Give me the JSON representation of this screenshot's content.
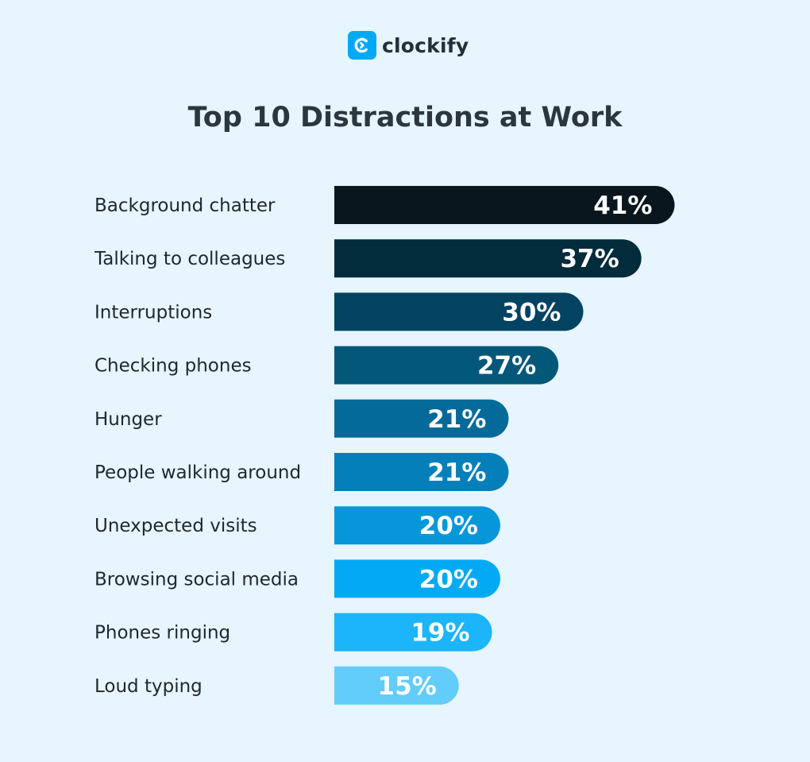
{
  "brand": {
    "name": "clockify",
    "icon": "clockify-logo-icon",
    "color": "#03a9f4"
  },
  "chart_data": {
    "type": "bar",
    "orientation": "horizontal",
    "title": "Top 10 Distractions at Work",
    "categories": [
      "Background chatter",
      "Talking to colleagues",
      "Interruptions",
      "Checking phones",
      "Hunger",
      "People walking around",
      "Unexpected visits",
      "Browsing social media",
      "Phones ringing",
      "Loud typing"
    ],
    "values": [
      41,
      37,
      30,
      27,
      21,
      21,
      20,
      20,
      19,
      15
    ],
    "value_labels": [
      "41%",
      "37%",
      "30%",
      "27%",
      "21%",
      "21%",
      "20%",
      "20%",
      "19%",
      "15%"
    ],
    "unit": "%",
    "colors": [
      "#09161d",
      "#022b3c",
      "#034260",
      "#035779",
      "#046a99",
      "#047fb9",
      "#0697d8",
      "#03a9f4",
      "#1cb5fb",
      "#62ccfb"
    ],
    "grid": false,
    "legend": "none"
  }
}
